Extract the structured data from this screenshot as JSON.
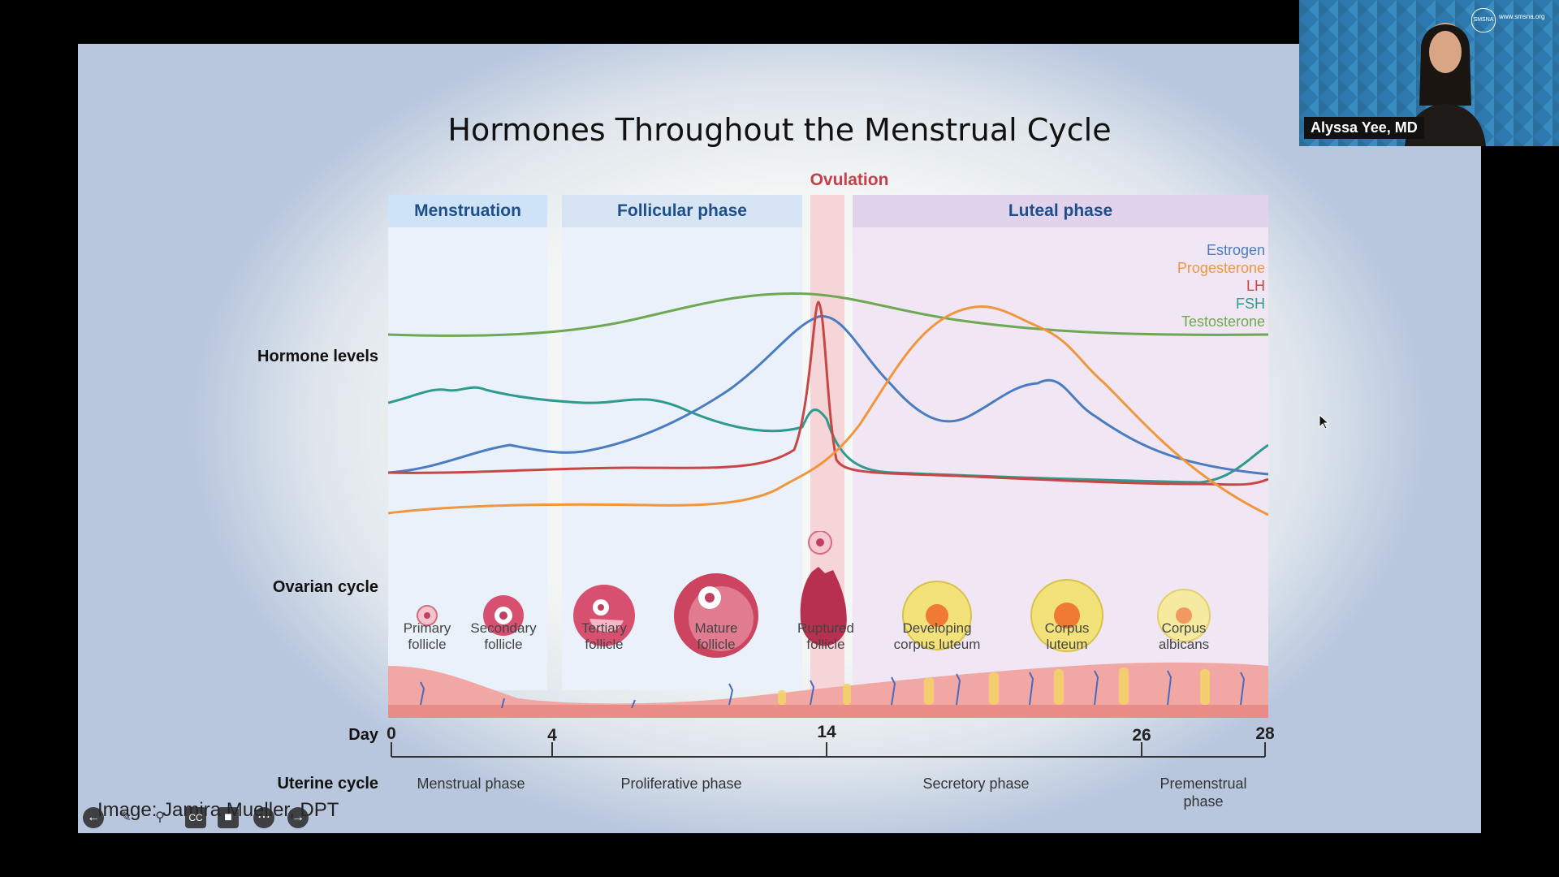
{
  "slide": {
    "title": "Hormones Throughout the Menstrual Cycle",
    "ovulation_label": "Ovulation",
    "phases": [
      "Menstruation",
      "Follicular phase",
      "Luteal phase"
    ],
    "row_labels": {
      "hormone": "Hormone levels",
      "ovarian": "Ovarian cycle",
      "day": "Day",
      "uterine": "Uterine cycle"
    },
    "legend": [
      {
        "name": "Estrogen",
        "color": "#4a7cc0"
      },
      {
        "name": "Progesterone",
        "color": "#f0963c"
      },
      {
        "name": "LH",
        "color": "#c94646"
      },
      {
        "name": "FSH",
        "color": "#2f9a8e"
      },
      {
        "name": "Testosterone",
        "color": "#6fa852"
      }
    ],
    "follicles": [
      {
        "line1": "Primary",
        "line2": "follicle"
      },
      {
        "line1": "Secondary",
        "line2": "follicle"
      },
      {
        "line1": "Tertiary",
        "line2": "follicle"
      },
      {
        "line1": "Mature",
        "line2": "follicle"
      },
      {
        "line1": "Ruptured",
        "line2": "follicle"
      },
      {
        "line1": "Developing",
        "line2": "corpus luteum"
      },
      {
        "line1": "Corpus",
        "line2": "luteum"
      },
      {
        "line1": "Corpus",
        "line2": "albicans"
      }
    ],
    "days": [
      "0",
      "4",
      "14",
      "26",
      "28"
    ],
    "uterine_phases": [
      {
        "line1": "Menstrual phase",
        "line2": ""
      },
      {
        "line1": "Proliferative phase",
        "line2": ""
      },
      {
        "line1": "Secretory phase",
        "line2": ""
      },
      {
        "line1": "Premenstrual",
        "line2": "phase"
      }
    ],
    "credit": "Image: Jamira Mueller, DPT"
  },
  "video": {
    "speaker_name": "Alyssa Yee, MD",
    "logo_text": "SMSNA",
    "url_text": "www.smsna.org"
  },
  "toolbar": {
    "prev_icon": "arrow-left-icon",
    "pen_icon": "pen-icon",
    "zoom_icon": "magnifier-icon",
    "cc_icon": "captions-icon",
    "screen_icon": "screen-icon",
    "more_icon": "more-icon",
    "next_icon": "arrow-right-icon"
  }
}
